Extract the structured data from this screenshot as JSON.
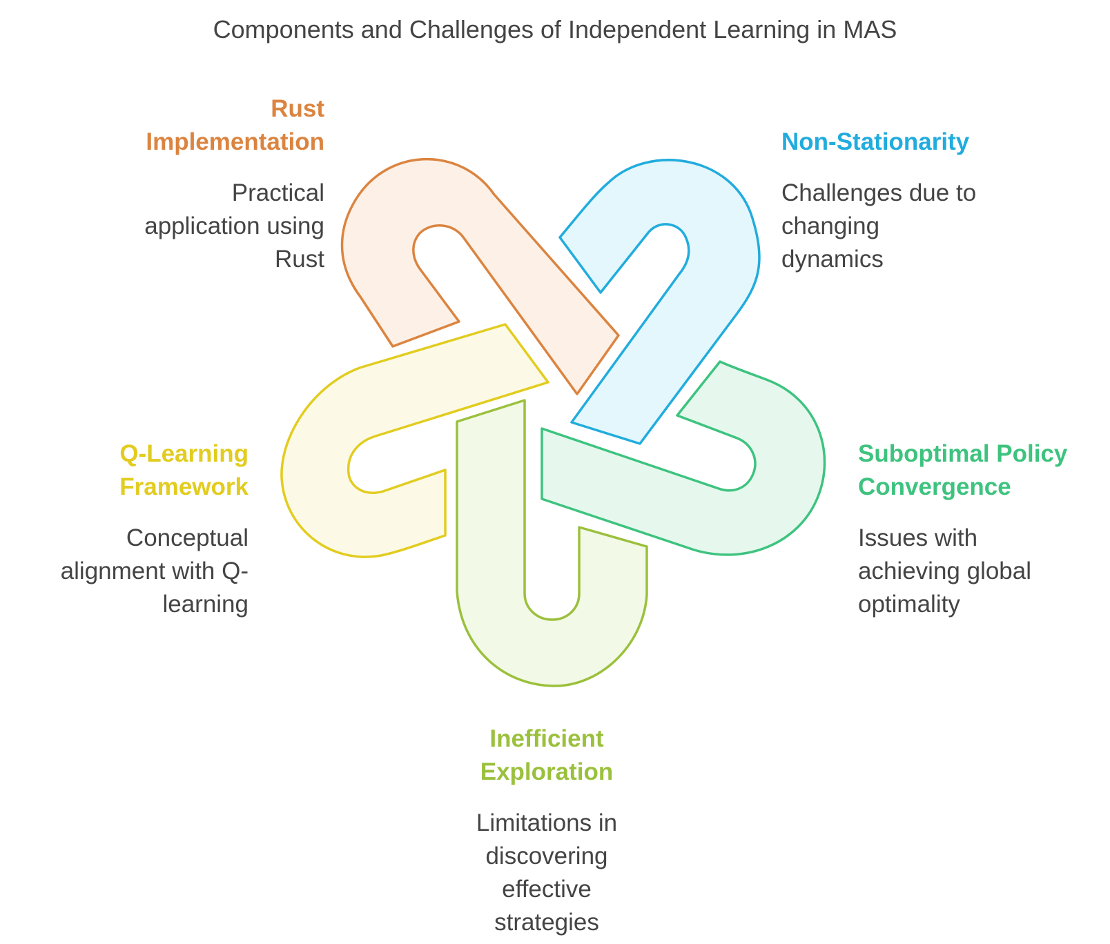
{
  "title": "Components and Challenges of Independent Learning in MAS",
  "colors": {
    "rust": {
      "stroke": "#DB8440",
      "fill": "#FDF1E7",
      "text": "#DB8440"
    },
    "nonstationarity": {
      "stroke": "#21ACDD",
      "fill": "#E4F7FC",
      "text": "#21ACDD"
    },
    "suboptimal": {
      "stroke": "#3EC37F",
      "fill": "#E6F8EE",
      "text": "#3EC37F"
    },
    "inefficient": {
      "stroke": "#9BC03C",
      "fill": "#F2F9E7",
      "text": "#9BC03C"
    },
    "qlearning": {
      "stroke": "#E2CC1F",
      "fill": "#FCFAE6",
      "text": "#E2CC1F"
    }
  },
  "items": {
    "rust": {
      "heading": "Rust\nImplementation",
      "description": "Practical\napplication using\nRust"
    },
    "nonstationarity": {
      "heading": "Non-Stationarity",
      "description": "Challenges due to\nchanging\ndynamics"
    },
    "qlearning": {
      "heading": "Q-Learning\nFramework",
      "description": "Conceptual\nalignment with Q-\nlearning"
    },
    "suboptimal": {
      "heading": "Suboptimal Policy\nConvergence",
      "description": "Issues with\nachieving global\noptimality"
    },
    "inefficient": {
      "heading": "Inefficient\nExploration",
      "description": "Limitations in\ndiscovering\neffective\nstrategies"
    }
  }
}
